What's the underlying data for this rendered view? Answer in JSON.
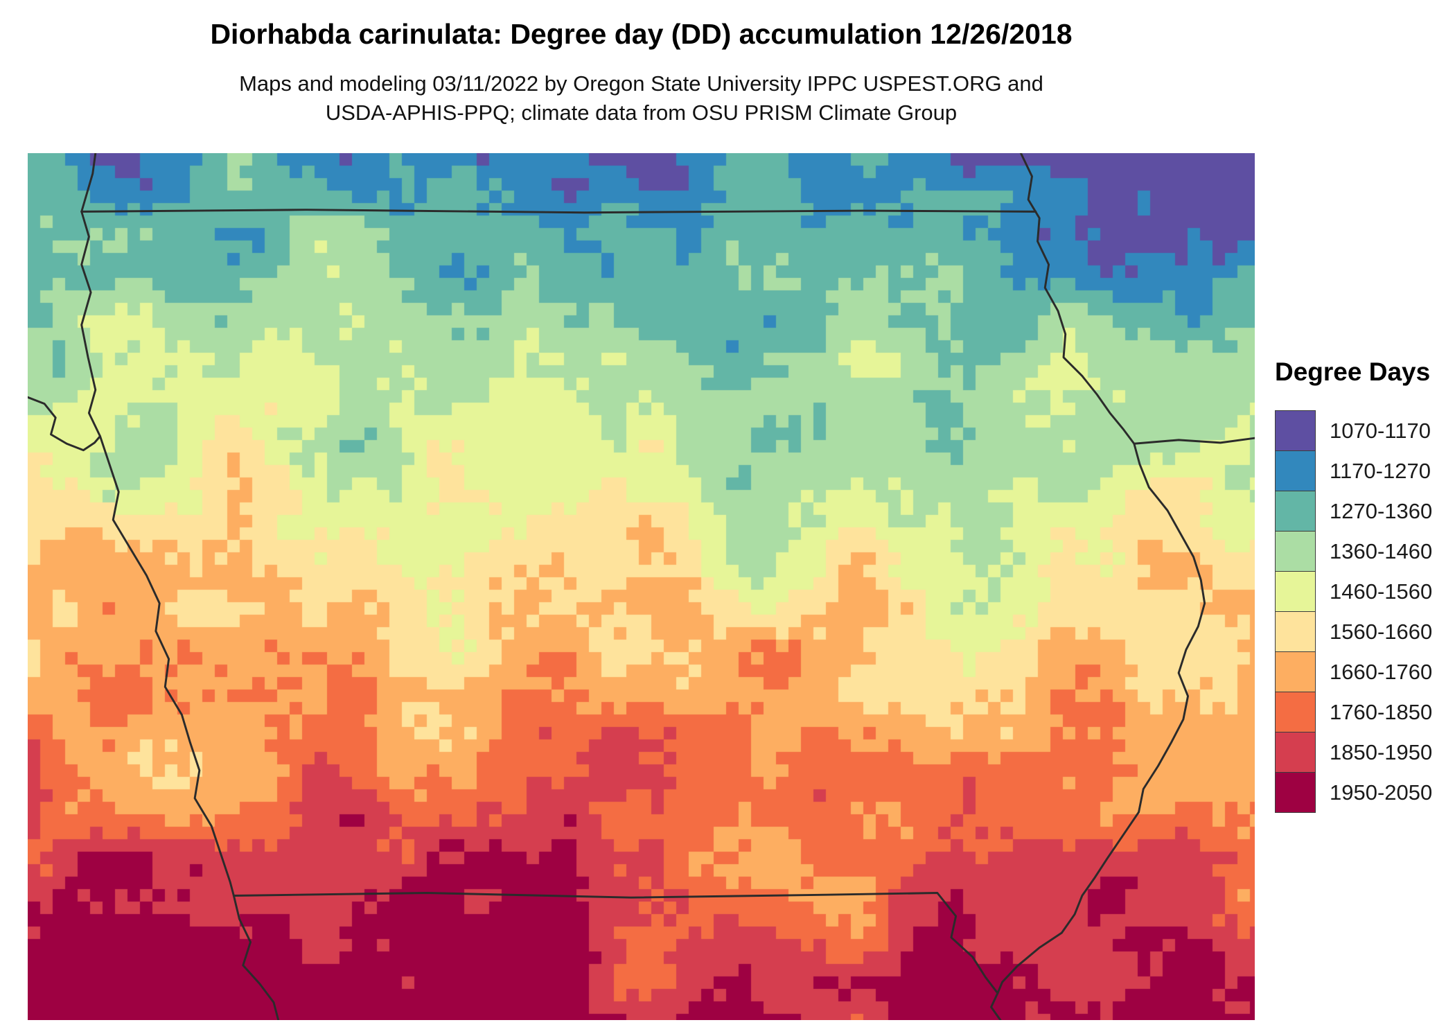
{
  "header": {
    "title": "Diorhabda carinulata: Degree day (DD) accumulation 12/26/2018",
    "subtitle_line1": "Maps and modeling 03/11/2022 by Oregon State University IPPC USPEST.ORG and",
    "subtitle_line2": "USDA-APHIS-PPQ; climate data from OSU PRISM Climate Group"
  },
  "legend": {
    "title": "Degree Days",
    "entries": [
      {
        "label": "1070-1170",
        "color": "#5e4fa2"
      },
      {
        "label": "1170-1270",
        "color": "#3288bd"
      },
      {
        "label": "1270-1360",
        "color": "#63b6a6"
      },
      {
        "label": "1360-1460",
        "color": "#abdda4"
      },
      {
        "label": "1460-1560",
        "color": "#e6f598"
      },
      {
        "label": "1560-1660",
        "color": "#fee39c"
      },
      {
        "label": "1660-1760",
        "color": "#fdae61"
      },
      {
        "label": "1760-1850",
        "color": "#f46d43"
      },
      {
        "label": "1850-1950",
        "color": "#d53e4f"
      },
      {
        "label": "1950-2050",
        "color": "#9e0142"
      }
    ]
  },
  "map": {
    "border_color": "#2b2b2b",
    "background": "#ffffff"
  }
}
